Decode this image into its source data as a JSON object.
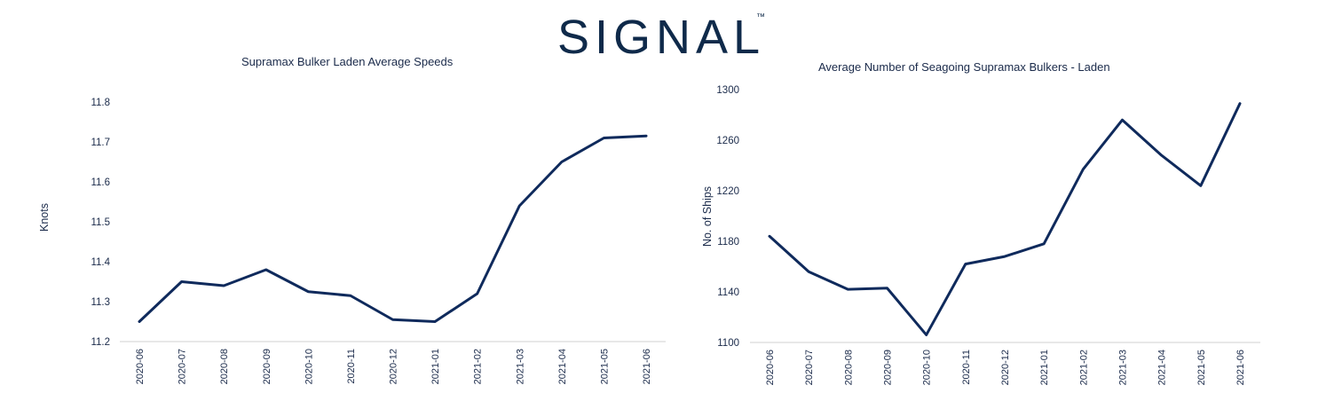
{
  "brand": {
    "name": "SIGNAL",
    "trademark": "™",
    "color": "#0f2a4a"
  },
  "chart_data": [
    {
      "type": "line",
      "title": "Supramax  Bulker  Laden Average Speeds",
      "xlabel": "",
      "ylabel": "Knots",
      "categories": [
        "2020-06",
        "2020-07",
        "2020-08",
        "2020-09",
        "2020-10",
        "2020-11",
        "2020-12",
        "2021-01",
        "2021-02",
        "2021-03",
        "2021-04",
        "2021-05",
        "2021-06"
      ],
      "series": [
        {
          "values": [
            11.25,
            11.35,
            11.34,
            11.38,
            11.325,
            11.315,
            11.255,
            11.25,
            11.32,
            11.54,
            11.65,
            11.71,
            11.715
          ]
        }
      ],
      "ylim": [
        11.2,
        11.8
      ],
      "yticks": [
        "11.2",
        "11.3",
        "11.4",
        "11.5",
        "11.6",
        "11.7",
        "11.8"
      ],
      "grid": false,
      "color": "#0f2a5c"
    },
    {
      "type": "line",
      "title": "Average Number  of Seagoing Supramax Bulkers - Laden",
      "xlabel": "",
      "ylabel": "No. of Ships",
      "categories": [
        "2020-06",
        "2020-07",
        "2020-08",
        "2020-09",
        "2020-10",
        "2020-11",
        "2020-12",
        "2021-01",
        "2021-02",
        "2021-03",
        "2021-04",
        "2021-05",
        "2021-06"
      ],
      "series": [
        {
          "values": [
            1184,
            1156,
            1142,
            1143,
            1106,
            1162,
            1168,
            1178,
            1237,
            1276,
            1248,
            1224,
            1289
          ]
        }
      ],
      "ylim": [
        1100,
        1300
      ],
      "yticks": [
        "1100",
        "1140",
        "1180",
        "1220",
        "1260",
        "1300"
      ],
      "grid": false,
      "color": "#0f2a5c"
    }
  ]
}
